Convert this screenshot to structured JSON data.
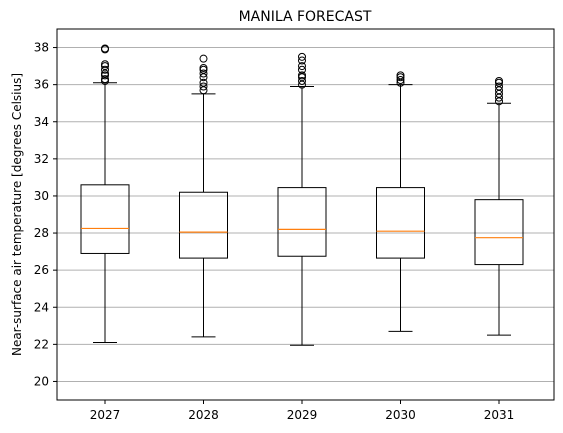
{
  "chart_data": {
    "type": "box",
    "title": "MANILA FORECAST",
    "xlabel": "",
    "ylabel": "Near-surface air temperature [degrees Celsius]",
    "ylim": [
      19.0,
      39.0
    ],
    "yticks": [
      20,
      22,
      24,
      26,
      28,
      30,
      32,
      34,
      36,
      38
    ],
    "grid": "horizontal",
    "categories": [
      "2027",
      "2028",
      "2029",
      "2030",
      "2031"
    ],
    "boxes": [
      {
        "label": "2027",
        "whisker_low": 22.1,
        "q1": 26.9,
        "median": 28.25,
        "q3": 30.6,
        "whisker_high": 36.1,
        "outliers": [
          36.2,
          36.3,
          36.5,
          36.6,
          36.8,
          37.0,
          37.1,
          37.9,
          37.95
        ]
      },
      {
        "label": "2028",
        "whisker_low": 22.4,
        "q1": 26.65,
        "median": 28.05,
        "q3": 30.2,
        "whisker_high": 35.5,
        "outliers": [
          35.7,
          35.9,
          36.1,
          36.4,
          36.6,
          36.8,
          36.9,
          37.4
        ]
      },
      {
        "label": "2029",
        "whisker_low": 21.95,
        "q1": 26.75,
        "median": 28.2,
        "q3": 30.45,
        "whisker_high": 35.9,
        "outliers": [
          36.0,
          36.2,
          36.4,
          36.5,
          36.8,
          37.0,
          37.3,
          37.5
        ]
      },
      {
        "label": "2030",
        "whisker_low": 22.7,
        "q1": 26.65,
        "median": 28.1,
        "q3": 30.45,
        "whisker_high": 36.0,
        "outliers": [
          36.1,
          36.25,
          36.4,
          36.5
        ]
      },
      {
        "label": "2031",
        "whisker_low": 22.5,
        "q1": 26.3,
        "median": 27.75,
        "q3": 29.8,
        "whisker_high": 35.0,
        "outliers": [
          35.1,
          35.3,
          35.5,
          35.7,
          35.9,
          36.1,
          36.2
        ]
      }
    ],
    "colors": {
      "box": "#000000",
      "median": "#ff7f0e",
      "grid": "#b0b0b0",
      "outlier_edge": "#000000"
    }
  }
}
